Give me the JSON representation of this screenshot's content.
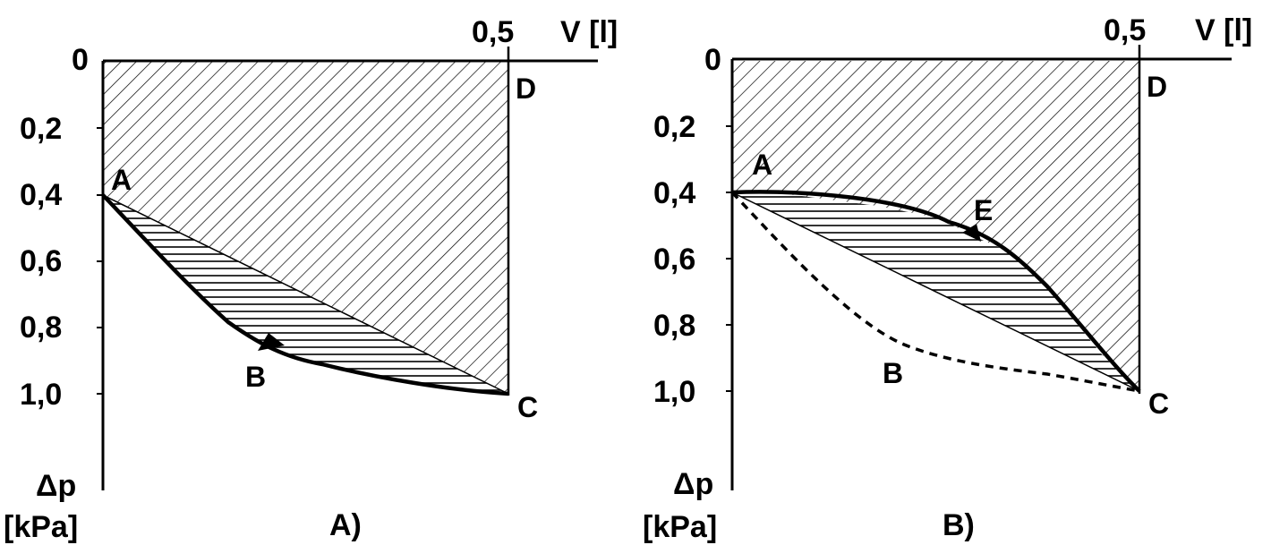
{
  "panels": [
    {
      "id": "A",
      "caption": "A)",
      "x_axis": {
        "tick_value": "0,5",
        "unit_label": "V [l]"
      },
      "y_axis": {
        "origin_label": "0",
        "tick_labels": [
          "0,2",
          "0,4",
          "0,6",
          "0,8",
          "1,0"
        ],
        "symbol": "Δp",
        "unit": "[kPa]"
      },
      "points": {
        "A": "A",
        "B": "B",
        "C": "C",
        "D": "D"
      },
      "curves": {
        "solid": "A-B-C (below chord A-C)",
        "dashed": "none"
      }
    },
    {
      "id": "B",
      "caption": "B)",
      "x_axis": {
        "tick_value": "0,5",
        "unit_label": "V [l]"
      },
      "y_axis": {
        "origin_label": "0",
        "tick_labels": [
          "0,2",
          "0,4",
          "0,6",
          "0,8",
          "1,0"
        ],
        "symbol": "Δp",
        "unit": "[kPa]"
      },
      "points": {
        "A": "A",
        "B": "B",
        "C": "C",
        "D": "D",
        "E": "E"
      },
      "curves": {
        "solid": "A-E-C (above chord A-C)",
        "dashed": "A-B-C"
      }
    }
  ],
  "colors": {
    "ink": "#000000",
    "background": "#ffffff"
  }
}
